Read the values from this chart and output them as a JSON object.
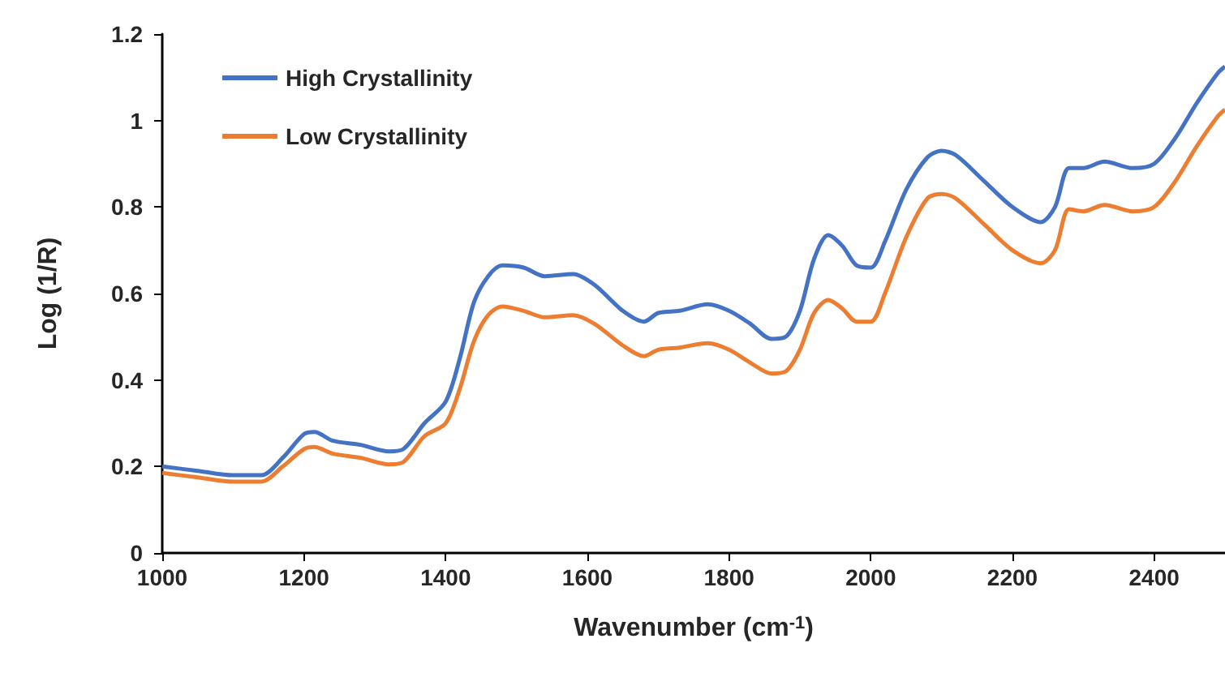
{
  "chart_data": {
    "type": "line",
    "xlabel": "Wavenumber (cm$^{-1}$)",
    "ylabel": "Log (1/R)",
    "x": [
      1000,
      1050,
      1100,
      1140,
      1170,
      1200,
      1215,
      1240,
      1280,
      1320,
      1340,
      1370,
      1400,
      1420,
      1440,
      1460,
      1480,
      1510,
      1540,
      1580,
      1610,
      1650,
      1680,
      1700,
      1730,
      1770,
      1800,
      1830,
      1860,
      1880,
      1900,
      1920,
      1940,
      1960,
      1980,
      2000,
      2020,
      2050,
      2080,
      2100,
      2120,
      2160,
      2200,
      2240,
      2260,
      2280,
      2300,
      2330,
      2370,
      2400,
      2430,
      2460,
      2490,
      2500
    ],
    "series": [
      {
        "name": "High Crystallinity",
        "color": "#4472c4",
        "values": [
          0.2,
          0.19,
          0.18,
          0.18,
          0.22,
          0.275,
          0.28,
          0.26,
          0.25,
          0.235,
          0.24,
          0.3,
          0.35,
          0.45,
          0.58,
          0.64,
          0.665,
          0.66,
          0.64,
          0.645,
          0.62,
          0.56,
          0.535,
          0.555,
          0.56,
          0.575,
          0.56,
          0.53,
          0.495,
          0.5,
          0.56,
          0.68,
          0.735,
          0.71,
          0.665,
          0.66,
          0.72,
          0.84,
          0.915,
          0.93,
          0.92,
          0.86,
          0.8,
          0.765,
          0.8,
          0.89,
          0.89,
          0.905,
          0.89,
          0.9,
          0.96,
          1.04,
          1.11,
          1.125
        ]
      },
      {
        "name": "Low Crystallinity",
        "color": "#ed7d31",
        "values": [
          0.185,
          0.175,
          0.165,
          0.165,
          0.2,
          0.24,
          0.245,
          0.23,
          0.22,
          0.205,
          0.21,
          0.27,
          0.3,
          0.38,
          0.49,
          0.55,
          0.57,
          0.56,
          0.545,
          0.55,
          0.53,
          0.48,
          0.455,
          0.47,
          0.475,
          0.485,
          0.47,
          0.44,
          0.415,
          0.42,
          0.47,
          0.555,
          0.585,
          0.565,
          0.535,
          0.535,
          0.6,
          0.73,
          0.82,
          0.83,
          0.82,
          0.76,
          0.7,
          0.67,
          0.7,
          0.795,
          0.79,
          0.805,
          0.79,
          0.8,
          0.86,
          0.94,
          1.01,
          1.025
        ]
      }
    ],
    "xlim": [
      1000,
      2500
    ],
    "xticks": [
      1000,
      1200,
      1400,
      1600,
      1800,
      2000,
      2200,
      2400
    ],
    "ylim": [
      0,
      1.2
    ],
    "yticks": [
      0,
      0.2,
      0.4,
      0.6,
      0.8,
      1,
      1.2
    ],
    "grid": false,
    "legend": "top left",
    "marker": "none",
    "line_style": "solid"
  }
}
